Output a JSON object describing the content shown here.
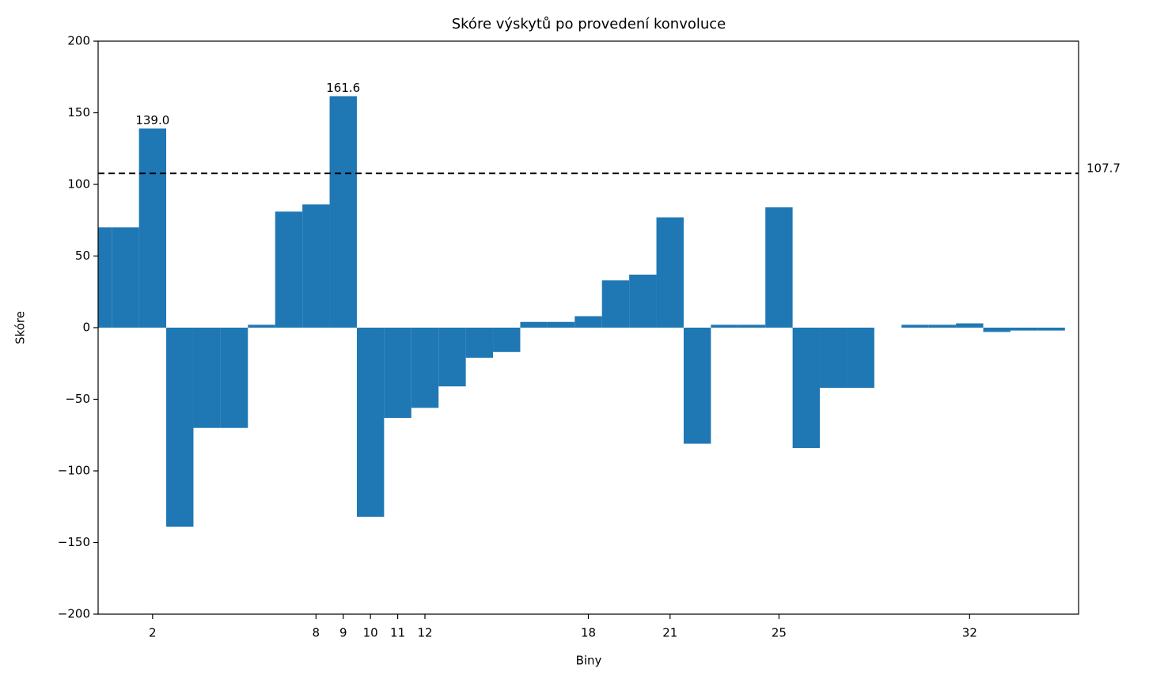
{
  "chart_data": {
    "type": "bar",
    "title": "Skóre výskytů po provedení konvoluce",
    "x_label": "Biny",
    "y_label": "Skóre",
    "x": [
      0,
      1,
      2,
      3,
      4,
      5,
      6,
      7,
      8,
      9,
      10,
      11,
      12,
      13,
      14,
      15,
      16,
      17,
      18,
      19,
      20,
      21,
      22,
      23,
      24,
      25,
      26,
      27,
      28,
      29,
      30,
      31,
      32,
      33,
      34,
      35
    ],
    "values": [
      70,
      70,
      139.0,
      -139,
      -70,
      -70,
      2,
      81,
      86,
      161.6,
      -132,
      -63,
      -56,
      -41,
      -21,
      -17,
      4,
      4,
      8,
      33,
      37,
      77,
      -81,
      2,
      2,
      84,
      -84,
      -42,
      -42,
      0,
      2,
      2,
      3,
      -3,
      -2,
      -2
    ],
    "value_labels": [
      null,
      null,
      "139.0",
      null,
      null,
      null,
      null,
      null,
      null,
      "161.6",
      null,
      null,
      null,
      null,
      null,
      null,
      null,
      null,
      null,
      null,
      null,
      null,
      null,
      null,
      null,
      null,
      null,
      null,
      null,
      null,
      null,
      null,
      null,
      null,
      null,
      null
    ],
    "color": "#1f77b4",
    "hline": 107.7,
    "xlim": [
      0,
      36
    ],
    "xticks": [
      2,
      8,
      9,
      10,
      11,
      12,
      18,
      21,
      25,
      32
    ],
    "ylim": [
      -200,
      200
    ],
    "yticks": [
      {
        "value": -200,
        "label": "−200"
      },
      {
        "value": -150,
        "label": "−150"
      },
      {
        "value": -100,
        "label": "−100"
      },
      {
        "value": -50,
        "label": "−50"
      },
      0,
      50,
      100,
      150,
      200
    ],
    "grid": false
  }
}
